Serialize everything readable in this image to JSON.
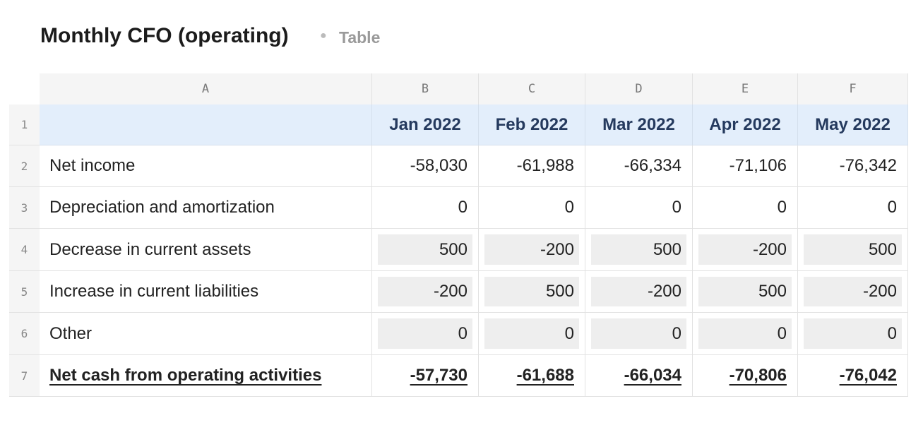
{
  "header": {
    "title": "Monthly CFO (operating)",
    "subtitle": "Table"
  },
  "table": {
    "column_letters": [
      "A",
      "B",
      "C",
      "D",
      "E",
      "F"
    ],
    "row_numbers": [
      "1",
      "2",
      "3",
      "4",
      "5",
      "6",
      "7"
    ],
    "months": [
      "Jan 2022",
      "Feb 2022",
      "Mar 2022",
      "Apr 2022",
      "May 2022"
    ],
    "rows": [
      {
        "label": "Net income",
        "values": [
          "-58,030",
          "-61,988",
          "-66,334",
          "-71,106",
          "-76,342"
        ]
      },
      {
        "label": "Depreciation and amortization",
        "values": [
          "0",
          "0",
          "0",
          "0",
          "0"
        ]
      },
      {
        "label": "Decrease in current assets",
        "values": [
          "500",
          "-200",
          "500",
          "-200",
          "500"
        ]
      },
      {
        "label": "Increase in current liabilities",
        "values": [
          "-200",
          "500",
          "-200",
          "500",
          "-200"
        ]
      },
      {
        "label": "Other",
        "values": [
          "0",
          "0",
          "0",
          "0",
          "0"
        ]
      },
      {
        "label": "Net cash from operating activities",
        "values": [
          "-57,730",
          "-61,688",
          "-66,034",
          "-70,806",
          "-76,042"
        ]
      }
    ]
  }
}
